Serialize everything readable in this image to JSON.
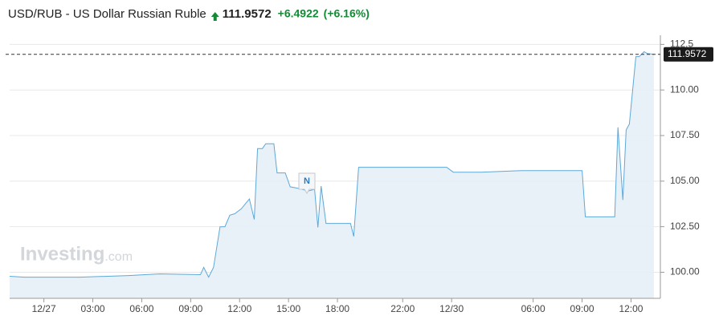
{
  "chart_data": {
    "type": "area",
    "title": "USD/RUB - US Dollar Russian Ruble",
    "price": "111.9572",
    "change": "+6.4922",
    "change_percent": "(+6.16%)",
    "watermark": "Investing",
    "watermark_suffix": ".com",
    "news_marker": "N",
    "current_value": 111.9572,
    "current_label": "111.9572",
    "line_color": "#5ea8d8",
    "fill_color": "#e4eef7",
    "grid": true,
    "x": [
      -2.1,
      -1.2,
      2.2,
      5.2,
      7.1,
      9.6,
      9.8,
      10.1,
      10.4,
      10.8,
      11.1,
      11.4,
      11.7,
      12.1,
      12.6,
      12.9,
      13.1,
      13.4,
      13.6,
      14.1,
      14.3,
      14.8,
      15.1,
      15.6,
      16.2,
      16.6,
      16.8,
      17.0,
      17.3,
      18.8,
      19.0,
      19.3,
      24.7,
      25.1,
      26.8,
      29.3,
      33.0,
      33.2,
      35.0,
      35.2,
      35.5,
      35.7,
      35.9,
      36.3,
      36.5,
      36.8,
      37.0,
      37.4
    ],
    "values": [
      99.78,
      99.73,
      99.73,
      99.82,
      99.91,
      99.87,
      100.27,
      99.73,
      100.27,
      102.5,
      102.5,
      103.13,
      103.21,
      103.48,
      104.02,
      102.9,
      106.79,
      106.79,
      107.05,
      107.05,
      105.45,
      105.45,
      104.69,
      104.6,
      104.46,
      104.55,
      102.46,
      104.73,
      102.68,
      102.68,
      101.96,
      105.76,
      105.76,
      105.49,
      105.49,
      105.58,
      105.58,
      103.04,
      103.04,
      107.95,
      103.97,
      107.81,
      108.13,
      111.83,
      111.83,
      112.1,
      112.0,
      111.9572
    ],
    "xlim": [
      -2.1,
      37.8
    ],
    "xticks": [
      {
        "value": 0,
        "label": "12/27"
      },
      {
        "value": 3,
        "label": "03:00"
      },
      {
        "value": 6,
        "label": "06:00"
      },
      {
        "value": 9,
        "label": "09:00"
      },
      {
        "value": 12,
        "label": "12:00"
      },
      {
        "value": 15,
        "label": "15:00"
      },
      {
        "value": 18,
        "label": "18:00"
      },
      {
        "value": 22,
        "label": "22:00"
      },
      {
        "value": 25,
        "label": "12/30"
      },
      {
        "value": 30,
        "label": "06:00"
      },
      {
        "value": 33,
        "label": "09:00"
      },
      {
        "value": 36,
        "label": "12:00"
      }
    ],
    "ylim": [
      98.57,
      113
    ],
    "yticks": [
      {
        "value": 100,
        "label": "100.00"
      },
      {
        "value": 102.5,
        "label": "102.50"
      },
      {
        "value": 105,
        "label": "105.00"
      },
      {
        "value": 107.5,
        "label": "107.50"
      },
      {
        "value": 110,
        "label": "110.00"
      },
      112.5
    ]
  }
}
